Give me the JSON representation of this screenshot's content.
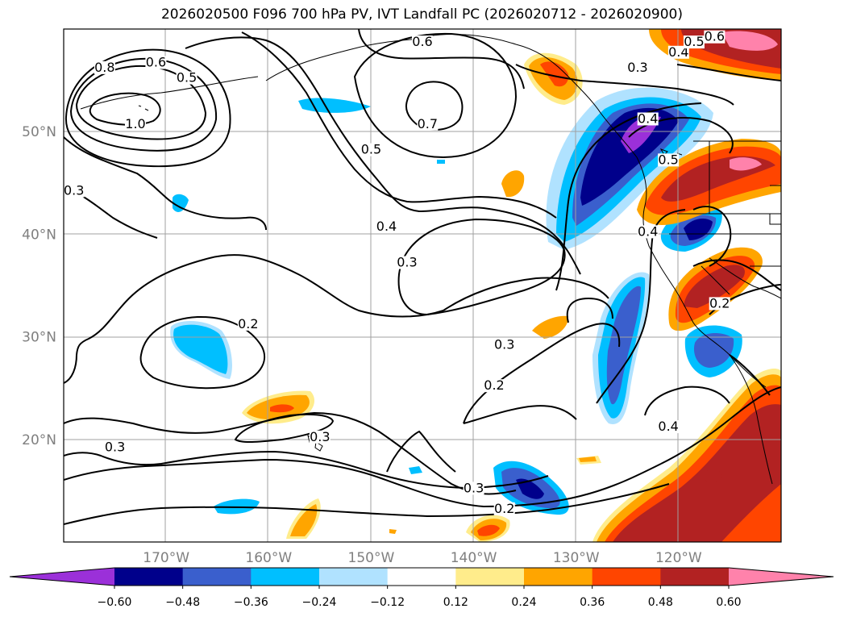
{
  "title": "2026020500 F096 700 hPa PV, IVT Landfall PC (2026020712 - 2026020900)",
  "map": {
    "lon_range": [
      -180,
      -110
    ],
    "lat_range": [
      10,
      60
    ],
    "lon_ticks": [
      {
        "value": -170,
        "label": "170°W"
      },
      {
        "value": -160,
        "label": "160°W"
      },
      {
        "value": -150,
        "label": "150°W"
      },
      {
        "value": -140,
        "label": "140°W"
      },
      {
        "value": -130,
        "label": "130°W"
      },
      {
        "value": -120,
        "label": "120°W"
      }
    ],
    "lat_ticks": [
      {
        "value": 50,
        "label": "50°N"
      },
      {
        "value": 40,
        "label": "40°N"
      },
      {
        "value": 30,
        "label": "30°N"
      },
      {
        "value": 20,
        "label": "20°N"
      }
    ],
    "contour_labels": [
      {
        "text": "0.8",
        "lon": -176,
        "lat": 56
      },
      {
        "text": "0.6",
        "lon": -171,
        "lat": 56.5
      },
      {
        "text": "0.5",
        "lon": -168,
        "lat": 55
      },
      {
        "text": "1.0",
        "lon": -173,
        "lat": 50.5
      },
      {
        "text": "0.6",
        "lon": -145,
        "lat": 58.5
      },
      {
        "text": "0.7",
        "lon": -144.5,
        "lat": 50.5
      },
      {
        "text": "0.5",
        "lon": -150,
        "lat": 48
      },
      {
        "text": "0.4",
        "lon": -148.5,
        "lat": 40.5
      },
      {
        "text": "0.3",
        "lon": -146.5,
        "lat": 37
      },
      {
        "text": "0.3",
        "lon": -179,
        "lat": 44
      },
      {
        "text": "0.2",
        "lon": -162,
        "lat": 31
      },
      {
        "text": "0.3",
        "lon": -137,
        "lat": 29
      },
      {
        "text": "0.2",
        "lon": -138,
        "lat": 25
      },
      {
        "text": "0.3",
        "lon": -155,
        "lat": 20
      },
      {
        "text": "0.3",
        "lon": -175,
        "lat": 19
      },
      {
        "text": "0.3",
        "lon": -140,
        "lat": 15
      },
      {
        "text": "0.2",
        "lon": -137,
        "lat": 13
      },
      {
        "text": "0.3",
        "lon": -124,
        "lat": 56
      },
      {
        "text": "0.4",
        "lon": -120,
        "lat": 57.5
      },
      {
        "text": "0.5",
        "lon": -118.5,
        "lat": 58.5
      },
      {
        "text": "0.6",
        "lon": -116.5,
        "lat": 59
      },
      {
        "text": "0.4",
        "lon": -123,
        "lat": 51
      },
      {
        "text": "0.5",
        "lon": -121,
        "lat": 47
      },
      {
        "text": "0.4",
        "lon": -123,
        "lat": 40
      },
      {
        "text": "0.2",
        "lon": -116,
        "lat": 33
      },
      {
        "text": "0.4",
        "lon": -121,
        "lat": 21
      }
    ]
  },
  "colorbar": {
    "colors": [
      "#9b30d9",
      "#00008b",
      "#3a5fcd",
      "#00bfff",
      "#b0e2ff",
      "#ffffff",
      "#ffec8b",
      "#ffa500",
      "#ff4500",
      "#b22222",
      "#ff82ab"
    ],
    "tick_labels": [
      "−0.60",
      "−0.48",
      "−0.36",
      "−0.24",
      "−0.12",
      "0.12",
      "0.24",
      "0.36",
      "0.48",
      "0.60"
    ]
  }
}
